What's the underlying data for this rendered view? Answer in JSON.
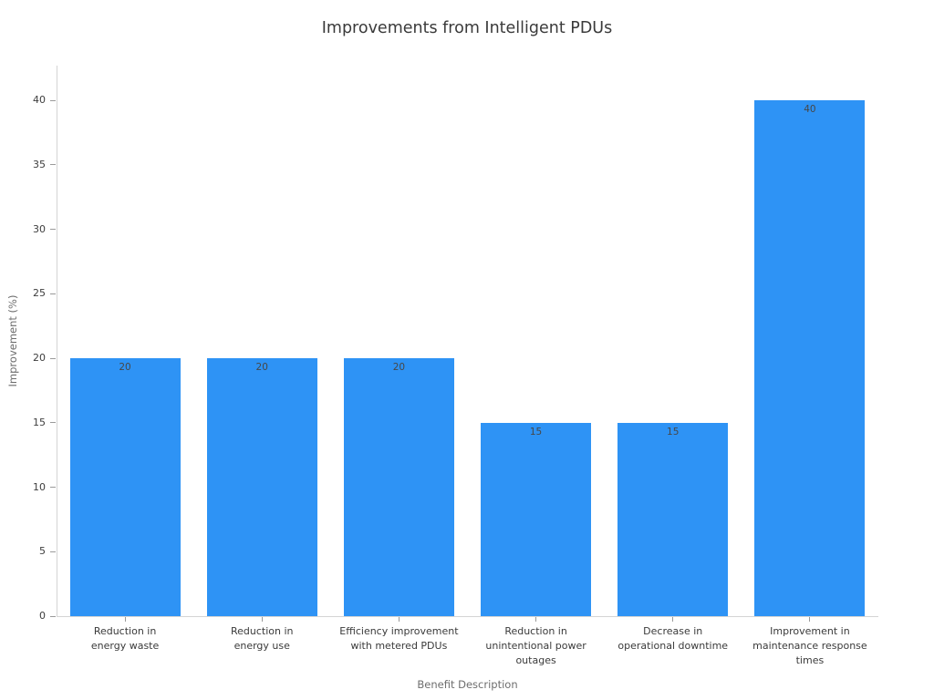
{
  "chart_data": {
    "type": "bar",
    "title": "Improvements from Intelligent PDUs",
    "xlabel": "Benefit Description",
    "ylabel": "Improvement (%)",
    "categories": [
      "Reduction in\nenergy waste",
      "Reduction in\nenergy use",
      "Efficiency improvement\nwith metered PDUs",
      "Reduction in\nunintentional power\noutages",
      "Decrease in\noperational downtime",
      "Improvement in\nmaintenance response\ntimes"
    ],
    "values": [
      20,
      20,
      20,
      15,
      15,
      40
    ],
    "bar_value_labels": [
      "20",
      "20",
      "20",
      "15",
      "15",
      "40"
    ],
    "yticks": [
      0,
      5,
      10,
      15,
      20,
      25,
      30,
      35,
      40
    ],
    "ylim": [
      0,
      42.7
    ],
    "bar_color": "#2e93f5",
    "value_label_color": "#474747",
    "grid": false,
    "legend_position": "none"
  }
}
